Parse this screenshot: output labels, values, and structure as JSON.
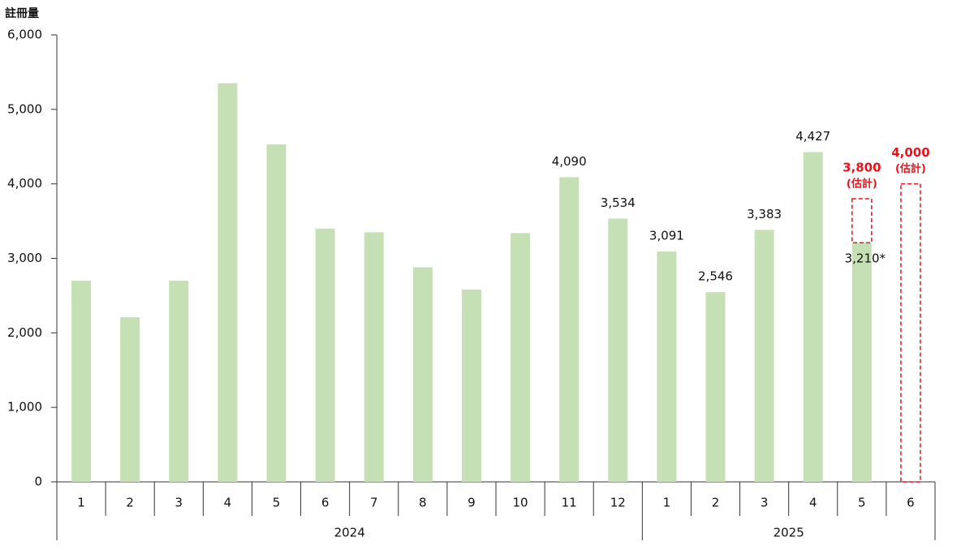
{
  "chart_data": {
    "type": "bar",
    "y_label": "註冊量",
    "color": "#c5e0b4",
    "estimate_color": "#e8141c",
    "ylim": [
      0,
      6000
    ],
    "yticks": [
      0,
      {
        "value": 1000,
        "label": "1,000"
      },
      {
        "value": 2000,
        "label": "2,000"
      },
      {
        "value": 3000,
        "label": "3,000"
      },
      {
        "value": 4000,
        "label": "4,000"
      },
      {
        "value": 5000,
        "label": "5,000"
      },
      {
        "value": 6000,
        "label": "6,000"
      }
    ],
    "groups": [
      {
        "label": "2024",
        "categories": [
          "1",
          "2",
          "3",
          "4",
          "5",
          "6",
          "7",
          "8",
          "9",
          "10",
          "11",
          "12"
        ],
        "values": [
          2700,
          2210,
          2700,
          5350,
          4530,
          3400,
          3350,
          2880,
          2580,
          3340,
          4090,
          3534
        ],
        "value_labels": [
          null,
          null,
          null,
          null,
          null,
          null,
          null,
          null,
          null,
          null,
          "4,090",
          "3,534"
        ]
      },
      {
        "label": "2025",
        "categories": [
          "1",
          "2",
          "3",
          "4",
          "5",
          "6"
        ],
        "values": [
          3091,
          2546,
          3383,
          4427,
          3210,
          null
        ],
        "value_labels": [
          "3,091",
          "2,546",
          "3,383",
          "4,427",
          "3,210*",
          null
        ],
        "estimate_values": [
          null,
          null,
          null,
          null,
          3800,
          4000
        ],
        "estimate_labels": [
          null,
          null,
          null,
          null,
          "3,800",
          "4,000"
        ],
        "estimate_note": "(估計)"
      }
    ]
  }
}
